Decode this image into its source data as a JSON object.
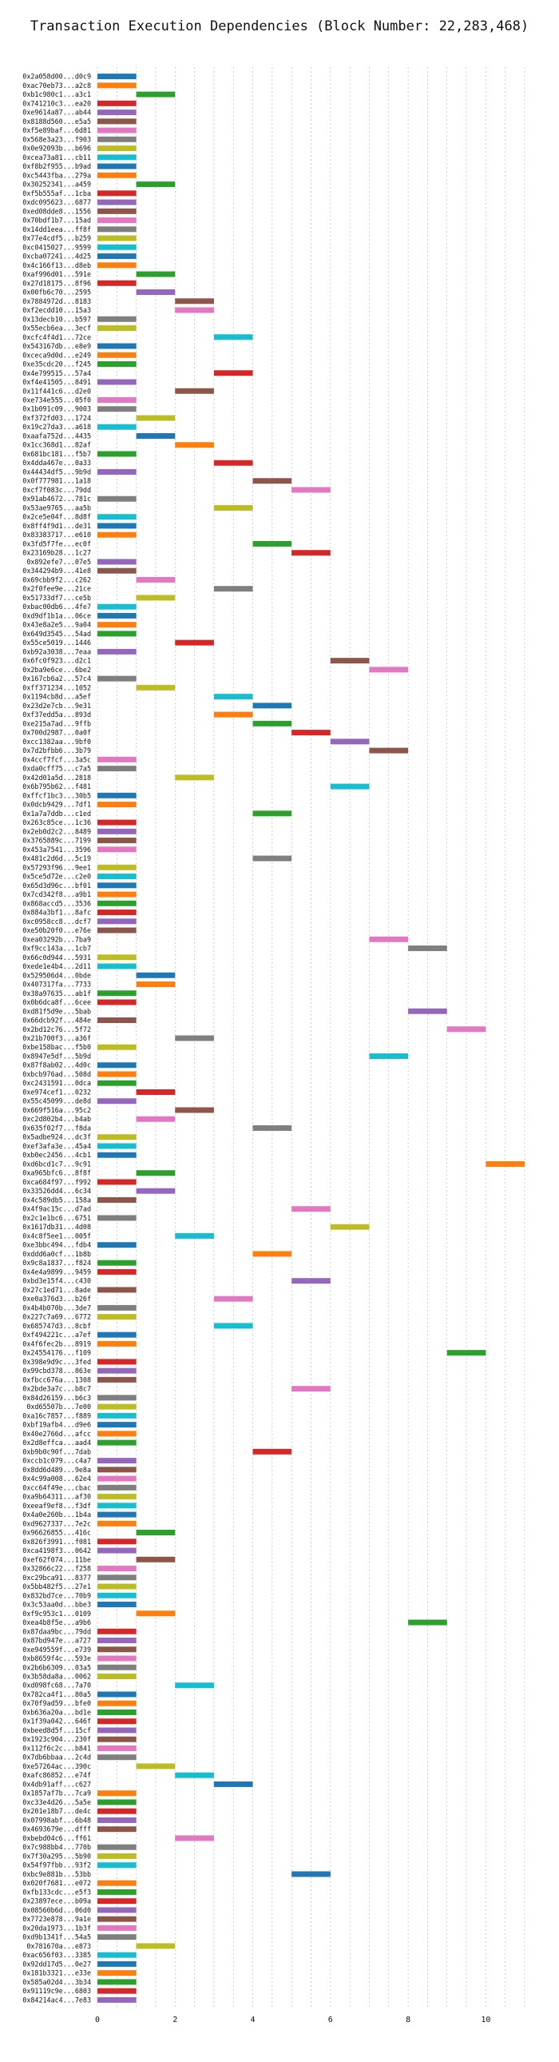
{
  "chart_data": {
    "type": "bar",
    "orientation": "horizontal",
    "title": "Transaction Execution Dependencies (Block Number: 22,283,468)",
    "xlabel": "",
    "ylabel": "",
    "xlim": [
      0,
      11
    ],
    "xticks": [
      0,
      2,
      4,
      6,
      8,
      10
    ],
    "grid": true,
    "bar_span": 1,
    "colors": [
      "#1f77b4",
      "#ff7f0e",
      "#2ca02c",
      "#d62728",
      "#9467bd",
      "#8c564b",
      "#e377c2",
      "#7f7f7f",
      "#bcbd22",
      "#17becf"
    ],
    "transactions": [
      {
        "label": "0x2a058d00...d0c9",
        "start": 0
      },
      {
        "label": "0xac70eb73...a2c8",
        "start": 0
      },
      {
        "label": "0xb1c980c1...a3c1",
        "start": 1
      },
      {
        "label": "0x741210c3...ea20",
        "start": 0
      },
      {
        "label": "0xe9614a87...ab44",
        "start": 0
      },
      {
        "label": "0x8188d560...e5a5",
        "start": 0
      },
      {
        "label": "0xf5e89baf...6d81",
        "start": 0
      },
      {
        "label": "0x568e3a23...f903",
        "start": 0
      },
      {
        "label": "0x0e92093b...b696",
        "start": 0
      },
      {
        "label": "0xcea73a81...cb11",
        "start": 0
      },
      {
        "label": "0xf8b2f955...b9ad",
        "start": 0
      },
      {
        "label": "0xc5443fba...279a",
        "start": 0
      },
      {
        "label": "0x30252341...a459",
        "start": 1
      },
      {
        "label": "0xf5b555af...1cba",
        "start": 0
      },
      {
        "label": "0xdc095623...6877",
        "start": 0
      },
      {
        "label": "0xed08dde8...1556",
        "start": 0
      },
      {
        "label": "0x70bdf1b7...15ad",
        "start": 0
      },
      {
        "label": "0x14dd1eea...ff8f",
        "start": 0
      },
      {
        "label": "0x77e4cdf5...b259",
        "start": 0
      },
      {
        "label": "0xc0415027...9599",
        "start": 0
      },
      {
        "label": "0xcba07241...4d25",
        "start": 0
      },
      {
        "label": "0x4c166f13...d8eb",
        "start": 0
      },
      {
        "label": "0xaf996d01...591e",
        "start": 1
      },
      {
        "label": "0x27d18175...8f96",
        "start": 0
      },
      {
        "label": "0x00fb6c70...2595",
        "start": 1
      },
      {
        "label": "0x7884972d...8183",
        "start": 2
      },
      {
        "label": "0xf2ecdd10...15a3",
        "start": 2
      },
      {
        "label": "0x13decb10...b597",
        "start": 0
      },
      {
        "label": "0x55ecb6ea...3ecf",
        "start": 0
      },
      {
        "label": "0xcfc4f4d1...72ce",
        "start": 3
      },
      {
        "label": "0x543167db...e8e9",
        "start": 0
      },
      {
        "label": "0xceca9d0d...e249",
        "start": 0
      },
      {
        "label": "0xe35cdc20...f245",
        "start": 0
      },
      {
        "label": "0x4e799515...57a4",
        "start": 3
      },
      {
        "label": "0xf4e41505...8491",
        "start": 0
      },
      {
        "label": "0x11f441c6...d2e0",
        "start": 2
      },
      {
        "label": "0xe734e555...05f0",
        "start": 0
      },
      {
        "label": "0x1b091c09...9003",
        "start": 0
      },
      {
        "label": "0xf372fd03...1724",
        "start": 1
      },
      {
        "label": "0x19c27da3...a618",
        "start": 0
      },
      {
        "label": "0xaafa752d...4435",
        "start": 1
      },
      {
        "label": "0x1cc368d1...82af",
        "start": 2
      },
      {
        "label": "0x681bc181...f5b7",
        "start": 0
      },
      {
        "label": "0x4dda467e...0a33",
        "start": 3
      },
      {
        "label": "0x44434df5...9b9d",
        "start": 0
      },
      {
        "label": "0x0f777981...1a18",
        "start": 4
      },
      {
        "label": "0xcf7f083c...79dd",
        "start": 5
      },
      {
        "label": "0x91ab4672...781c",
        "start": 0
      },
      {
        "label": "0x53ae9765...aa5b",
        "start": 3
      },
      {
        "label": "0x2ce5e04f...8d8f",
        "start": 0
      },
      {
        "label": "0x8ff4f9d1...de31",
        "start": 0
      },
      {
        "label": "0x83383717...e610",
        "start": 0
      },
      {
        "label": "0x3fd5f7fe...ec0f",
        "start": 4
      },
      {
        "label": "0x23169b28...1c27",
        "start": 5
      },
      {
        "label": "0x892efe7...07e5",
        "start": 0
      },
      {
        "label": "0x344294b9...41e8",
        "start": 0
      },
      {
        "label": "0x69cbb9f2...c262",
        "start": 1
      },
      {
        "label": "0x2f0fee9e...21ce",
        "start": 3
      },
      {
        "label": "0x51733df7...ce5b",
        "start": 1
      },
      {
        "label": "0xbac00db6...4fe7",
        "start": 0
      },
      {
        "label": "0xd9df1b1a...06ce",
        "start": 0
      },
      {
        "label": "0x43e8a2e5...9a04",
        "start": 0
      },
      {
        "label": "0x649d3545...54ad",
        "start": 0
      },
      {
        "label": "0x55ce5019...1446",
        "start": 2
      },
      {
        "label": "0xb92a3038...7eaa",
        "start": 0
      },
      {
        "label": "0x6fc0f923...d2c1",
        "start": 6
      },
      {
        "label": "0x2ba9e6ce...6be2",
        "start": 7
      },
      {
        "label": "0x167cb6a2...57c4",
        "start": 0
      },
      {
        "label": "0xff371234...1052",
        "start": 1
      },
      {
        "label": "0x1194cb8d...a5ef",
        "start": 3
      },
      {
        "label": "0x23d2e7cb...9e31",
        "start": 4
      },
      {
        "label": "0xf37edd5a...893d",
        "start": 3
      },
      {
        "label": "0xe215a7ad...9ffb",
        "start": 4
      },
      {
        "label": "0x700d2987...0a0f",
        "start": 5
      },
      {
        "label": "0xcc1382aa...9bf0",
        "start": 6
      },
      {
        "label": "0x7d2bfbb6...3b79",
        "start": 7
      },
      {
        "label": "0x4ccf7fcf...3a5c",
        "start": 0
      },
      {
        "label": "0xda0cff75...c7a5",
        "start": 0
      },
      {
        "label": "0x42d01a5d...2818",
        "start": 2
      },
      {
        "label": "0x6b795b62...f481",
        "start": 6
      },
      {
        "label": "0xffcf1bc3...30b5",
        "start": 0
      },
      {
        "label": "0x0dcb9429...7df1",
        "start": 0
      },
      {
        "label": "0x1a7a7ddb...c1ed",
        "start": 4
      },
      {
        "label": "0x263c85ce...1c36",
        "start": 0
      },
      {
        "label": "0x2eb0d2c2...8489",
        "start": 0
      },
      {
        "label": "0x3765889c...7199",
        "start": 0
      },
      {
        "label": "0x453a7541...3596",
        "start": 0
      },
      {
        "label": "0x481c2d6d...5c19",
        "start": 4
      },
      {
        "label": "0x57293f96...9ee1",
        "start": 0
      },
      {
        "label": "0x5ce5d72e...c2e0",
        "start": 0
      },
      {
        "label": "0x65d3d96c...bf01",
        "start": 0
      },
      {
        "label": "0x7cd342f8...a9b1",
        "start": 0
      },
      {
        "label": "0x868accd5...3536",
        "start": 0
      },
      {
        "label": "0x884a3bf1...8afc",
        "start": 0
      },
      {
        "label": "0xc0958cc8...dcf7",
        "start": 0
      },
      {
        "label": "0xe50b20f0...e76e",
        "start": 0
      },
      {
        "label": "0xea03292b...7ba9",
        "start": 7
      },
      {
        "label": "0xf9cc143a...1cb7",
        "start": 8
      },
      {
        "label": "0x66c0d944...5931",
        "start": 0
      },
      {
        "label": "0xede1e4b4...2d11",
        "start": 0
      },
      {
        "label": "0x529506d4...0bde",
        "start": 1
      },
      {
        "label": "0x407317fa...7733",
        "start": 1
      },
      {
        "label": "0x38a97635...ab1f",
        "start": 0
      },
      {
        "label": "0x0b6dca8f...6cee",
        "start": 0
      },
      {
        "label": "0xd81f5d9e...5bab",
        "start": 8
      },
      {
        "label": "0x66dcb92f...484e",
        "start": 0
      },
      {
        "label": "0x2bd12c76...5f72",
        "start": 9
      },
      {
        "label": "0x21b700f3...a36f",
        "start": 2
      },
      {
        "label": "0xbe158bac...f5b0",
        "start": 0
      },
      {
        "label": "0x8947e5df...5b9d",
        "start": 7
      },
      {
        "label": "0x87f8ab02...4d0c",
        "start": 0
      },
      {
        "label": "0xbcb976ad...508d",
        "start": 0
      },
      {
        "label": "0xc2431591...0dca",
        "start": 0
      },
      {
        "label": "0xe974cef1...0232",
        "start": 1
      },
      {
        "label": "0x55c45099...de8d",
        "start": 0
      },
      {
        "label": "0x669f516a...95c2",
        "start": 2
      },
      {
        "label": "0xc2d802b4...b4ab",
        "start": 1
      },
      {
        "label": "0x635f02f7...f8da",
        "start": 4
      },
      {
        "label": "0x5adbe924...dc3f",
        "start": 0
      },
      {
        "label": "0xef3afa3e...45a4",
        "start": 0
      },
      {
        "label": "0xb0ec2456...4cb1",
        "start": 0
      },
      {
        "label": "0xd6bcd1c7...9c91",
        "start": 10
      },
      {
        "label": "0xa965bfc6...8f8f",
        "start": 1
      },
      {
        "label": "0xca684f97...f992",
        "start": 0
      },
      {
        "label": "0x33526dd4...6c34",
        "start": 1
      },
      {
        "label": "0x4c589db5...158a",
        "start": 0
      },
      {
        "label": "0x4f9ac15c...d7ad",
        "start": 5
      },
      {
        "label": "0x2c1e1bc6...6751",
        "start": 0
      },
      {
        "label": "0x1617db31...4d08",
        "start": 6
      },
      {
        "label": "0x4c8f5ee1...005f",
        "start": 2
      },
      {
        "label": "0xe3bbc494...fdb4",
        "start": 0
      },
      {
        "label": "0xddd6a0cf...1b8b",
        "start": 4
      },
      {
        "label": "0x9c8a1837...f824",
        "start": 0
      },
      {
        "label": "0x4e4a9899...9459",
        "start": 0
      },
      {
        "label": "0xbd3e15f4...c430",
        "start": 5
      },
      {
        "label": "0x27c1ed71...8ade",
        "start": 0
      },
      {
        "label": "0xe0a376d3...b26f",
        "start": 3
      },
      {
        "label": "0x4b4b070b...3de7",
        "start": 0
      },
      {
        "label": "0x227c7a69...6772",
        "start": 0
      },
      {
        "label": "0x685747d3...8cbf",
        "start": 3
      },
      {
        "label": "0xf494221c...a7ef",
        "start": 0
      },
      {
        "label": "0x4f6fec2b...8919",
        "start": 0
      },
      {
        "label": "0x24554176...f109",
        "start": 9
      },
      {
        "label": "0x398e9d9c...3fed",
        "start": 0
      },
      {
        "label": "0x99cbd378...863e",
        "start": 0
      },
      {
        "label": "0xfbcc676a...1308",
        "start": 0
      },
      {
        "label": "0x2bde3a7c...b8c7",
        "start": 5
      },
      {
        "label": "0x84d26159...b6c3",
        "start": 0
      },
      {
        "label": "0xd65507b...7e00",
        "start": 0
      },
      {
        "label": "0xa16c7857...f889",
        "start": 0
      },
      {
        "label": "0xbf19afb4...d9e6",
        "start": 0
      },
      {
        "label": "0x40e2766d...afcc",
        "start": 0
      },
      {
        "label": "0x2d8effca...aad4",
        "start": 0
      },
      {
        "label": "0xb9b0c90f...7dab",
        "start": 4
      },
      {
        "label": "0xccb1c079...c4a7",
        "start": 0
      },
      {
        "label": "0x8dd6d489...9e8a",
        "start": 0
      },
      {
        "label": "0x4c99a008...62e4",
        "start": 0
      },
      {
        "label": "0xcc64f49e...cbac",
        "start": 0
      },
      {
        "label": "0xa9b64311...af30",
        "start": 0
      },
      {
        "label": "0xeeaf9ef8...f3df",
        "start": 0
      },
      {
        "label": "0x4a0e260b...1b4a",
        "start": 0
      },
      {
        "label": "0xd9627337...7e2c",
        "start": 0
      },
      {
        "label": "0x96626855...416c",
        "start": 1
      },
      {
        "label": "0x826f3991...f081",
        "start": 0
      },
      {
        "label": "0xca4198f3...0642",
        "start": 0
      },
      {
        "label": "0xef62f074...11be",
        "start": 1
      },
      {
        "label": "0x32866c22...f258",
        "start": 0
      },
      {
        "label": "0xc29bca91...8377",
        "start": 0
      },
      {
        "label": "0x5bb482f5...27e1",
        "start": 0
      },
      {
        "label": "0x832bd7ce...70b9",
        "start": 0
      },
      {
        "label": "0x3c53aa0d...bbe3",
        "start": 0
      },
      {
        "label": "0xf9c953c1...0109",
        "start": 1
      },
      {
        "label": "0xea4b8f5e...a9b6",
        "start": 8
      },
      {
        "label": "0x87daa9bc...79dd",
        "start": 0
      },
      {
        "label": "0x87bd947e...a727",
        "start": 0
      },
      {
        "label": "0xe949559f...e739",
        "start": 0
      },
      {
        "label": "0xb8659f4c...593e",
        "start": 0
      },
      {
        "label": "0x2b6b6309...03a5",
        "start": 0
      },
      {
        "label": "0x3b58da8a...0062",
        "start": 0
      },
      {
        "label": "0xd098fc68...7a70",
        "start": 2
      },
      {
        "label": "0x782ca4f1...80a5",
        "start": 0
      },
      {
        "label": "0x70f9ad59...bfe0",
        "start": 0
      },
      {
        "label": "0xb636a20a...bd1e",
        "start": 0
      },
      {
        "label": "0x1f39a042...646f",
        "start": 0
      },
      {
        "label": "0xbeed8d5f...15cf",
        "start": 0
      },
      {
        "label": "0x1923c904...230f",
        "start": 0
      },
      {
        "label": "0x112f6c2c...b841",
        "start": 0
      },
      {
        "label": "0x7db6bbaa...2c4d",
        "start": 0
      },
      {
        "label": "0xe57264ac...390c",
        "start": 1
      },
      {
        "label": "0xafc86852...e74f",
        "start": 2
      },
      {
        "label": "0x4db91aff...c627",
        "start": 3
      },
      {
        "label": "0x1857af7b...7ca9",
        "start": 0
      },
      {
        "label": "0xc33e4d26...5a5e",
        "start": 0
      },
      {
        "label": "0x201e18b7...de4c",
        "start": 0
      },
      {
        "label": "0x07998abf...6b48",
        "start": 0
      },
      {
        "label": "0x4693679e...dfff",
        "start": 0
      },
      {
        "label": "0xbebd04c6...ff61",
        "start": 2
      },
      {
        "label": "0x7c988bb4...770b",
        "start": 0
      },
      {
        "label": "0x7f30a295...5b90",
        "start": 0
      },
      {
        "label": "0x54f97fbb...93f2",
        "start": 0
      },
      {
        "label": "0xbc9e881b...53bb",
        "start": 5
      },
      {
        "label": "0x020f7681...e072",
        "start": 0
      },
      {
        "label": "0xfb133cdc...e5f3",
        "start": 0
      },
      {
        "label": "0x23897ece...b09a",
        "start": 0
      },
      {
        "label": "0x08560b6d...06d0",
        "start": 0
      },
      {
        "label": "0x7723e878...9a1e",
        "start": 0
      },
      {
        "label": "0x20da1973...1b3f",
        "start": 0
      },
      {
        "label": "0xd9b1341f...54a5",
        "start": 0
      },
      {
        "label": "0x781670a...e873",
        "start": 1
      },
      {
        "label": "0xac656f03...3385",
        "start": 0
      },
      {
        "label": "0x92dd17d5...0e27",
        "start": 0
      },
      {
        "label": "0x181b3321...e33e",
        "start": 0
      },
      {
        "label": "0x585a02d4...3b34",
        "start": 0
      },
      {
        "label": "0x91119c9e...6803",
        "start": 0
      },
      {
        "label": "0x84214ac4...7e83",
        "start": 0
      }
    ]
  }
}
